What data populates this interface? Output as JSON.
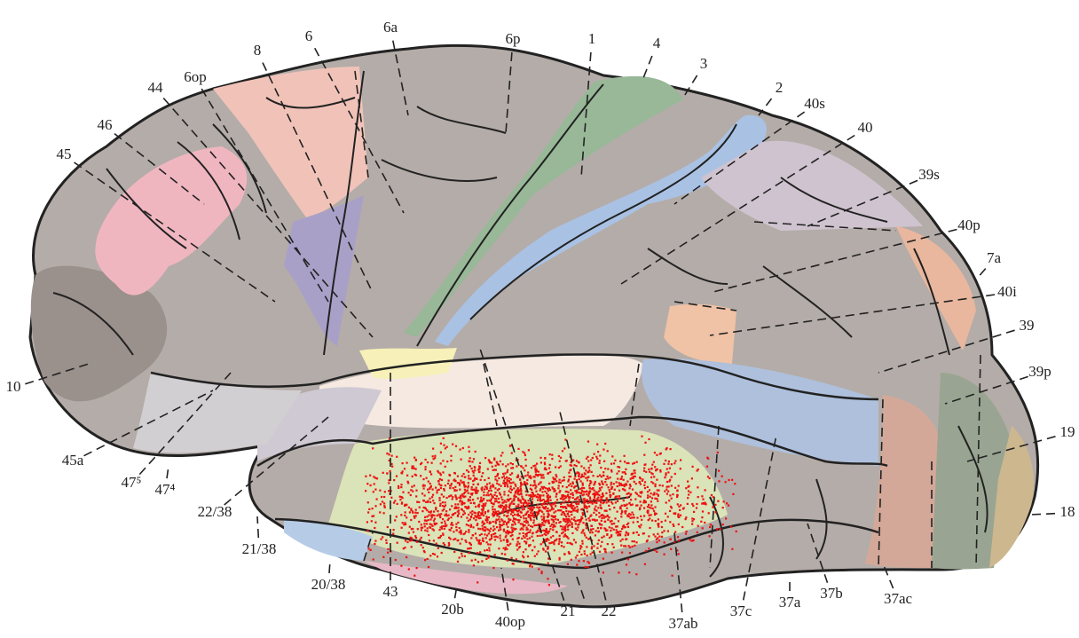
{
  "labels": [
    "6a",
    "6p",
    "1",
    "4",
    "3",
    "2",
    "40s",
    "40",
    "39s",
    "40p",
    "7a",
    "40i",
    "39",
    "39p",
    "19",
    "18",
    "37ac",
    "37b",
    "37a",
    "37c",
    "37ab",
    "22",
    "21",
    "40op",
    "20b",
    "43",
    "20/38",
    "21/38",
    "22/38",
    "47⁴",
    "47⁵",
    "45a",
    "10",
    "45",
    "46",
    "44",
    "6op",
    "8",
    "6"
  ]
}
